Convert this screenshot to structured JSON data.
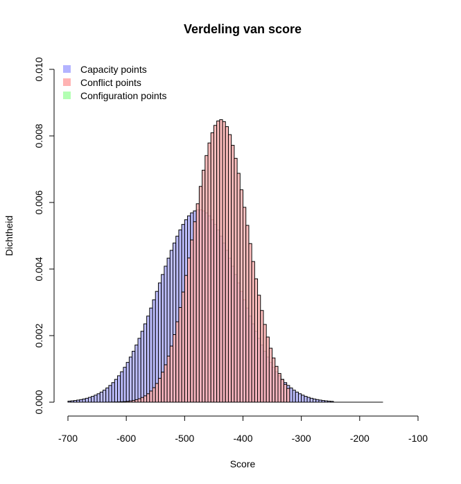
{
  "chart_data": {
    "type": "histogram",
    "title": "Verdeling van score",
    "xlabel": "Score",
    "ylabel": "Dichtheid",
    "xlim": [
      -700,
      -100
    ],
    "ylim": [
      0,
      0.01
    ],
    "x_ticks": [
      "-700",
      "-600",
      "-500",
      "-400",
      "-300",
      "-200",
      "-100"
    ],
    "y_ticks": [
      "0.000",
      "0.002",
      "0.004",
      "0.006",
      "0.008",
      "0.010"
    ],
    "grid": false,
    "legend_position": "top-left",
    "bin_width": 5,
    "series": [
      {
        "name": "Capacity points",
        "color": "#b3b3ff",
        "mean": -475,
        "sd": 69,
        "range": [
          -700,
          -245
        ]
      },
      {
        "name": "Conflict points",
        "color": "#ffb3b3",
        "mean": -438,
        "sd": 47,
        "range": [
          -660,
          -320
        ]
      },
      {
        "name": "Configuration points",
        "color": "#b3ffb3",
        "mean": null,
        "sd": null,
        "range": null
      }
    ]
  }
}
